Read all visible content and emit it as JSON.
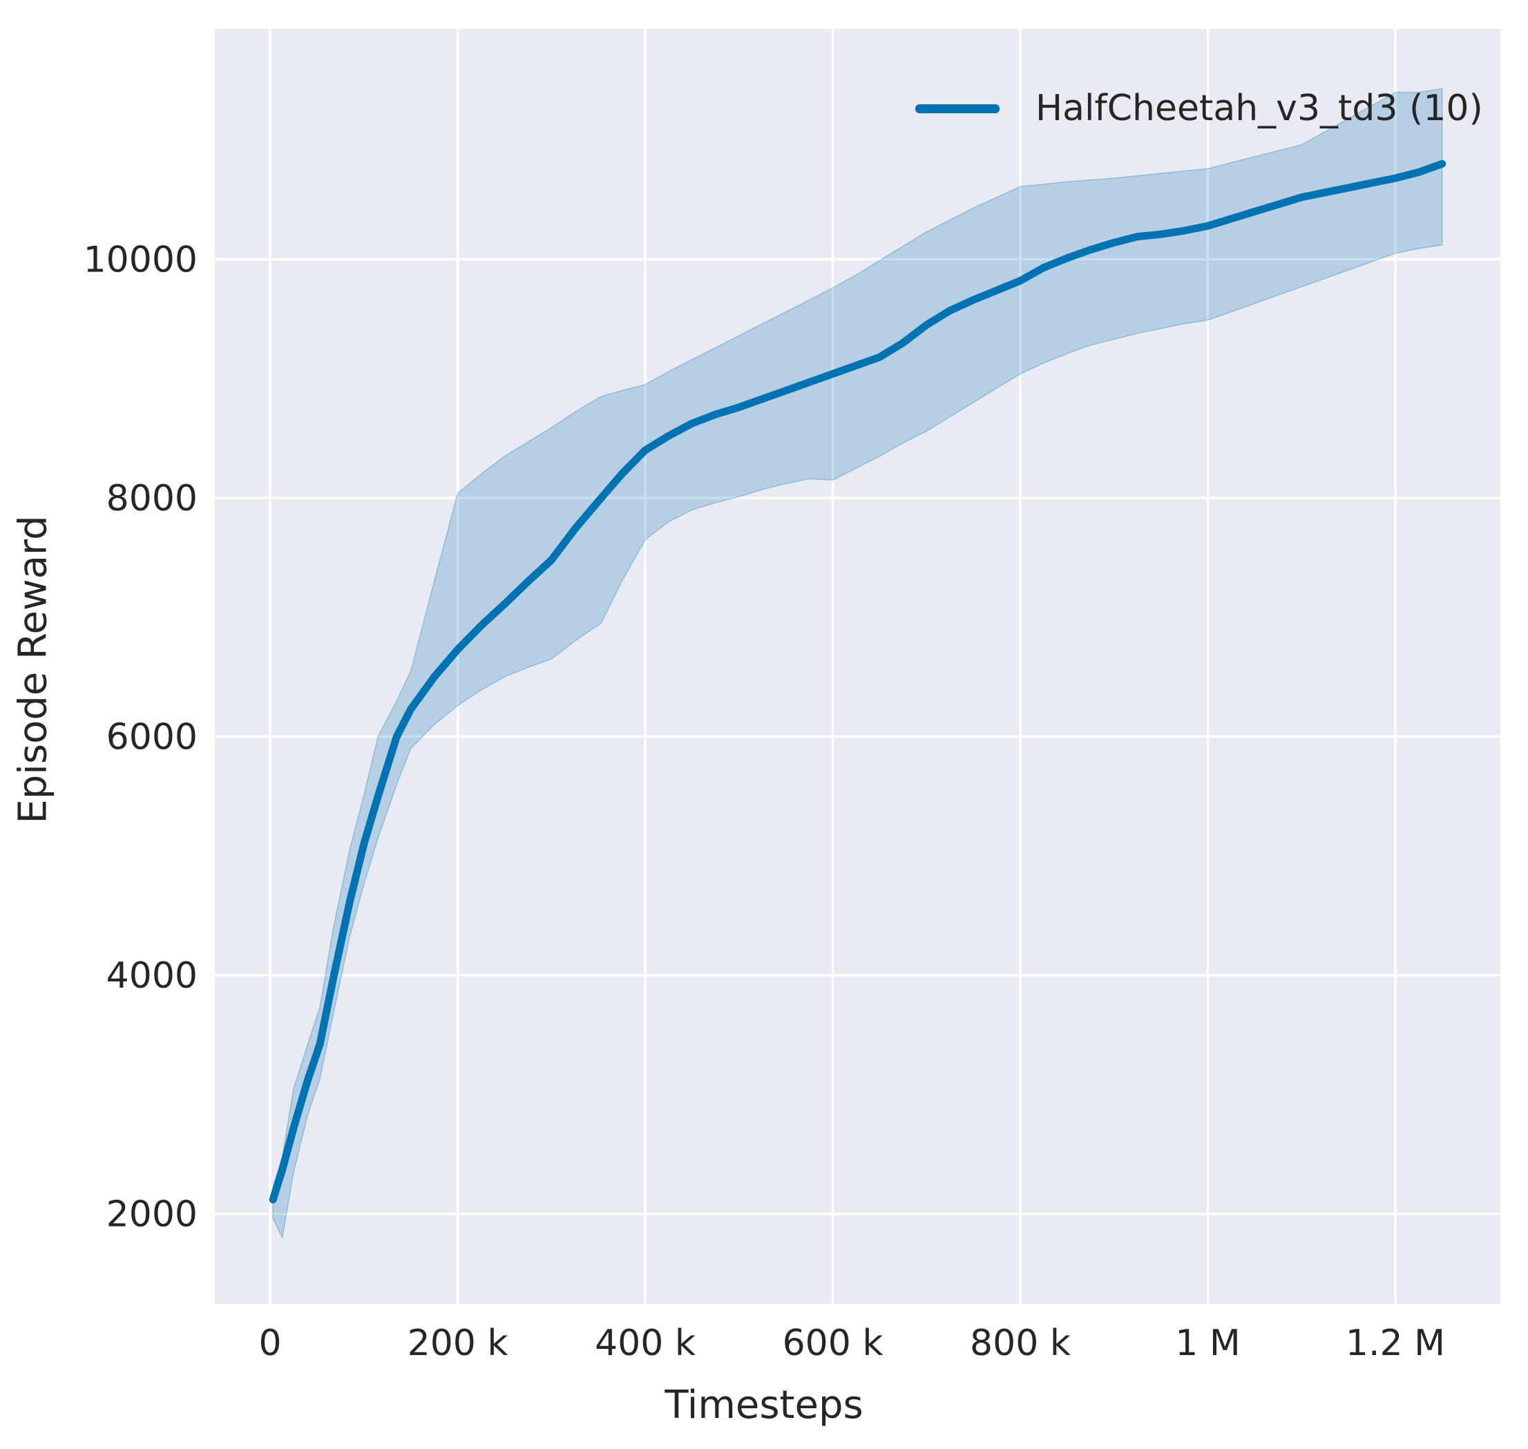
{
  "figure": {
    "xlabel": "Timesteps",
    "ylabel": "Episode Reward"
  },
  "legend": {
    "label": "HalfCheetah_v3_td3 (10)",
    "position": "upper right"
  },
  "colors": {
    "line": "#0173b2",
    "band_fill": "rgba(1,115,178,0.22)",
    "band_edge": "rgba(1,115,178,0.30)",
    "plot_background": "#eaeaf2",
    "grid": "#ffffff",
    "text": "#262626"
  },
  "chart_data": {
    "type": "line",
    "title": "",
    "xlabel": "Timesteps",
    "ylabel": "Episode Reward",
    "grid": true,
    "legend_position": "upper right",
    "xlim": [
      -59000,
      1312000
    ],
    "ylim": [
      1245,
      11930
    ],
    "x_ticks": [
      {
        "v": 0,
        "label": "0"
      },
      {
        "v": 200000,
        "label": "200 k"
      },
      {
        "v": 400000,
        "label": "400 k"
      },
      {
        "v": 600000,
        "label": "600 k"
      },
      {
        "v": 800000,
        "label": "800 k"
      },
      {
        "v": 1000000,
        "label": "1 M"
      },
      {
        "v": 1200000,
        "label": "1.2 M"
      }
    ],
    "y_ticks": [
      {
        "v": 2000,
        "label": "2000"
      },
      {
        "v": 4000,
        "label": "4000"
      },
      {
        "v": 6000,
        "label": "6000"
      },
      {
        "v": 8000,
        "label": "8000"
      },
      {
        "v": 10000,
        "label": "10000"
      }
    ],
    "series": [
      {
        "name": "HalfCheetah_v3_td3 (10)",
        "color": "#0173b2",
        "x": [
          3000,
          13000,
          25000,
          40000,
          53000,
          68000,
          85000,
          100000,
          115000,
          135000,
          150000,
          175000,
          200000,
          225000,
          250000,
          275000,
          300000,
          325000,
          353000,
          375000,
          400000,
          425000,
          450000,
          475000,
          500000,
          525000,
          550000,
          575000,
          600000,
          625000,
          650000,
          675000,
          700000,
          725000,
          750000,
          775000,
          800000,
          825000,
          850000,
          875000,
          900000,
          925000,
          950000,
          975000,
          1000000,
          1025000,
          1050000,
          1075000,
          1100000,
          1125000,
          1150000,
          1175000,
          1200000,
          1225000,
          1250000
        ],
        "mean": [
          2120,
          2370,
          2720,
          3120,
          3420,
          4000,
          4620,
          5100,
          5500,
          6000,
          6230,
          6500,
          6730,
          6930,
          7110,
          7300,
          7480,
          7740,
          8000,
          8200,
          8400,
          8520,
          8625,
          8700,
          8760,
          8830,
          8900,
          8970,
          9040,
          9110,
          9180,
          9300,
          9450,
          9570,
          9660,
          9740,
          9820,
          9930,
          10010,
          10080,
          10140,
          10190,
          10210,
          10240,
          10280,
          10340,
          10400,
          10460,
          10520,
          10560,
          10600,
          10640,
          10680,
          10730,
          10800
        ],
        "lo": [
          1960,
          1800,
          2350,
          2830,
          3130,
          3700,
          4330,
          4760,
          5150,
          5600,
          5900,
          6100,
          6260,
          6390,
          6500,
          6580,
          6650,
          6800,
          6950,
          7300,
          7650,
          7800,
          7900,
          7960,
          8010,
          8070,
          8120,
          8160,
          8150,
          8250,
          8350,
          8460,
          8560,
          8680,
          8800,
          8920,
          9040,
          9130,
          9210,
          9280,
          9330,
          9380,
          9420,
          9460,
          9490,
          9560,
          9630,
          9700,
          9770,
          9840,
          9910,
          9980,
          10050,
          10090,
          10120
        ],
        "hi": [
          2230,
          2480,
          3050,
          3420,
          3730,
          4420,
          5060,
          5510,
          6000,
          6300,
          6550,
          7300,
          8040,
          8200,
          8350,
          8470,
          8590,
          8720,
          8850,
          8900,
          8950,
          9060,
          9160,
          9260,
          9360,
          9460,
          9560,
          9660,
          9760,
          9870,
          9990,
          10110,
          10230,
          10330,
          10430,
          10520,
          10610,
          10630,
          10650,
          10665,
          10680,
          10700,
          10720,
          10740,
          10760,
          10810,
          10860,
          10910,
          10960,
          11070,
          11180,
          11290,
          11400,
          11400,
          11430
        ]
      }
    ]
  }
}
